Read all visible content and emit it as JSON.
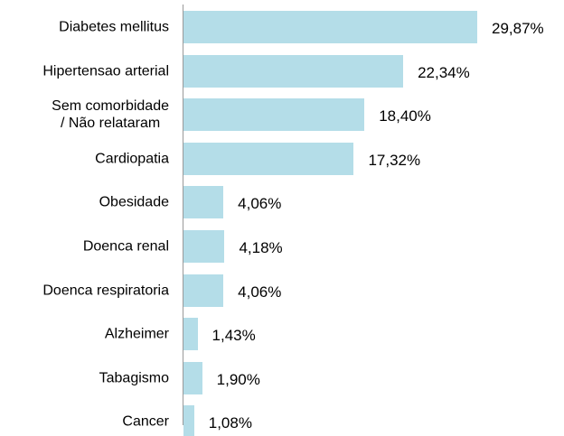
{
  "chart_data": {
    "type": "bar",
    "orientation": "horizontal",
    "categories": [
      "Diabetes mellitus",
      "Hipertensao arterial",
      "Sem comorbidade\n/ Não relataram",
      "Cardiopatia",
      "Obesidade",
      "Doenca renal",
      "Doenca respiratoria",
      "Alzheimer",
      "Tabagismo",
      "Cancer"
    ],
    "values": [
      29.87,
      22.34,
      18.4,
      17.32,
      4.06,
      4.18,
      4.06,
      1.43,
      1.9,
      1.08
    ],
    "value_labels": [
      "29,87%",
      "22,34%",
      "18,40%",
      "17,32%",
      "4,06%",
      "4,18%",
      "4,06%",
      "1,43%",
      "1,90%",
      "1,08%"
    ],
    "color": "#b4dde8"
  }
}
